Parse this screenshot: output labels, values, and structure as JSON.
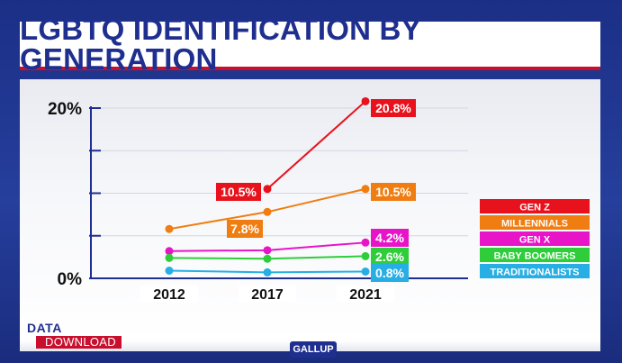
{
  "page": {
    "title": "LGBTQ IDENTIFICATION BY GENERATION",
    "logo_top": "DATA",
    "logo_bottom": "DOWNLOAD",
    "source": "GALLUP"
  },
  "colors": {
    "title": "#1e2f8f",
    "accent_red": "#c8102e",
    "axis": "#1e2f8f"
  },
  "chart_data": {
    "type": "line",
    "title": "LGBTQ IDENTIFICATION BY GENERATION",
    "xlabel": "",
    "ylabel": "",
    "x": [
      "2012",
      "2017",
      "2021"
    ],
    "ylim": [
      0,
      20
    ],
    "yticks": [
      0,
      5,
      10,
      15,
      20
    ],
    "ytick_labels": [
      "0%",
      "",
      "",
      "",
      "20%"
    ],
    "grid": true,
    "legend_position": "right",
    "series": [
      {
        "name": "GEN Z",
        "color": "#e8121c",
        "x": [
          "2017",
          "2021"
        ],
        "values": [
          10.5,
          20.8
        ],
        "labels": [
          "10.5%",
          "20.8%"
        ]
      },
      {
        "name": "MILLENNIALS",
        "color": "#ef7d12",
        "x": [
          "2012",
          "2017",
          "2021"
        ],
        "values": [
          5.8,
          7.8,
          10.5
        ],
        "labels": [
          "",
          "7.8%",
          "10.5%"
        ]
      },
      {
        "name": "GEN X",
        "color": "#e815c8",
        "x": [
          "2012",
          "2017",
          "2021"
        ],
        "values": [
          3.2,
          3.3,
          4.2
        ],
        "labels": [
          "",
          "",
          "4.2%"
        ]
      },
      {
        "name": "BABY BOOMERS",
        "color": "#2fcd3a",
        "x": [
          "2012",
          "2017",
          "2021"
        ],
        "values": [
          2.4,
          2.3,
          2.6
        ],
        "labels": [
          "",
          "",
          "2.6%"
        ]
      },
      {
        "name": "TRADITIONALISTS",
        "color": "#27aee4",
        "x": [
          "2012",
          "2017",
          "2021"
        ],
        "values": [
          0.9,
          0.7,
          0.8
        ],
        "labels": [
          "",
          "",
          "0.8%"
        ]
      }
    ]
  }
}
